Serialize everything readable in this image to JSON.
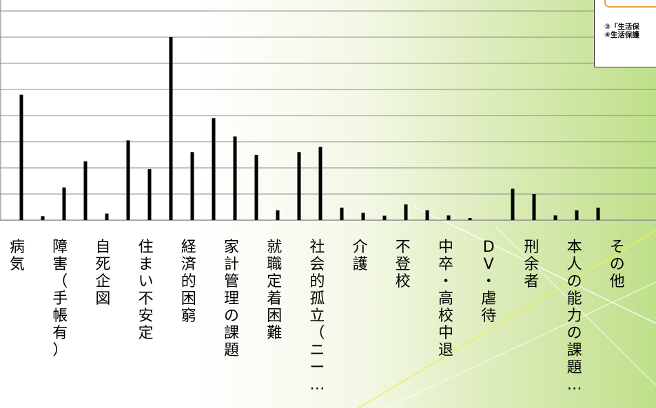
{
  "chart_data": {
    "type": "bar",
    "title": "",
    "xlabel": "",
    "ylabel": "",
    "ylim": [
      0,
      9
    ],
    "grid": true,
    "categories": [
      "病気",
      "障害（手帳有）",
      "自死企図",
      "住まい不安定",
      "経済的困窮",
      "家計管理の課題",
      "就職定着困難",
      "社会的孤立（ニー…",
      "介護",
      "不登校",
      "中卒・高校中退",
      "DV・虐待",
      "刑余者",
      "本人の能力の課題…",
      "その他"
    ],
    "bars": [
      {
        "category": "病気",
        "value": 4.8
      },
      {
        "category": "",
        "value": 0.15
      },
      {
        "category": "障害（手帳有）",
        "value": 1.25
      },
      {
        "category": "自死企図",
        "value": 2.25
      },
      {
        "category": "",
        "value": 0.25
      },
      {
        "category": "住まい不安定",
        "value": 3.05
      },
      {
        "category": "",
        "value": 1.95
      },
      {
        "category": "経済的困窮",
        "value": 7.0
      },
      {
        "category": "",
        "value": 2.6
      },
      {
        "category": "家計管理の課題",
        "value": 3.9
      },
      {
        "category": "就職定着困難",
        "value": 3.2
      },
      {
        "category": "",
        "value": 2.5
      },
      {
        "category": "",
        "value": 0.38
      },
      {
        "category": "社会的孤立（ニー…",
        "value": 2.6
      },
      {
        "category": "介護",
        "value": 2.8
      },
      {
        "category": "",
        "value": 0.48
      },
      {
        "category": "不登校",
        "value": 0.28
      },
      {
        "category": "",
        "value": 0.17
      },
      {
        "category": "中卒・高校中退",
        "value": 0.6
      },
      {
        "category": "",
        "value": 0.38
      },
      {
        "category": "DV・虐待",
        "value": 0.18
      },
      {
        "category": "",
        "value": 0.08
      },
      {
        "category": "刑余者",
        "value": 0.0
      },
      {
        "category": "本人の能力の課題…",
        "value": 1.2
      },
      {
        "category": "",
        "value": 1.0
      },
      {
        "category": "",
        "value": 0.18
      },
      {
        "category": "その他",
        "value": 0.38
      },
      {
        "category": "",
        "value": 0.48
      }
    ],
    "legend_lines": [
      "③「生活保",
      "④生活保護"
    ]
  },
  "colors": {
    "bar": "#000000",
    "grid": "#8a8a8a"
  }
}
